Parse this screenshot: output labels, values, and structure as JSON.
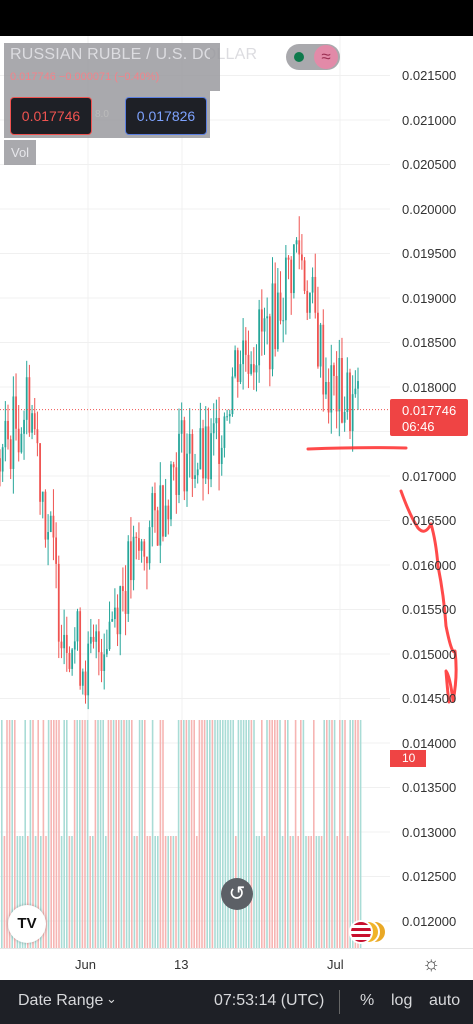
{
  "instrument": {
    "title": "RUSSIAN RUBLE / U.S. DOLLAR",
    "ohlc_line": "0.017746 −0.000071 (−0.40%)",
    "bid": "0.017746",
    "ask": "0.017826",
    "spread_hint": "8.0",
    "volume_label": "Vol"
  },
  "toggle": {
    "wave_glyph": "≈"
  },
  "price_axis": {
    "labels": [
      "0.021500",
      "0.021000",
      "0.020500",
      "0.020000",
      "0.019500",
      "0.019000",
      "0.018500",
      "0.018000",
      "0.017000",
      "0.016500",
      "0.016000",
      "0.015500",
      "0.015000",
      "0.014500",
      "0.014000",
      "0.013500",
      "0.013000",
      "0.012500",
      "0.012000"
    ]
  },
  "last_price": {
    "price": "0.017746",
    "countdown": "06:46"
  },
  "volume_value": "10",
  "time_axis": {
    "labels": [
      "Jun",
      "13",
      "Jul"
    ]
  },
  "colors": {
    "up": "#26a69a",
    "down": "#ef5350",
    "annotation": "#ff2a2a",
    "bar_bg": "#1e2026"
  },
  "icons": {
    "reset": "reset-chart-icon",
    "settings": "gear-icon",
    "logo": "tradingview-logo-icon"
  },
  "bottom_bar": {
    "date_range": "Date Range",
    "chevron": "⌄",
    "clock": "07:53:14 (UTC)",
    "percent": "%",
    "log": "log",
    "auto": "auto"
  },
  "chart_data": {
    "type": "candlestick",
    "title": "",
    "x_ticks": [
      "Jun",
      "13",
      "Jul"
    ],
    "y_range": [
      0.0118,
      0.0218
    ],
    "last": 0.017746,
    "path_approx": [
      {
        "x_label": "late May",
        "y": 0.0172
      },
      {
        "x_label": "late May",
        "y": 0.0179
      },
      {
        "x_label": "early Jun",
        "y": 0.0155
      },
      {
        "x_label": "early Jun",
        "y": 0.0148
      },
      {
        "x_label": "Jun",
        "y": 0.0157
      },
      {
        "x_label": "13",
        "y": 0.0163
      },
      {
        "x_label": "mid Jun",
        "y": 0.0173
      },
      {
        "x_label": "mid Jun",
        "y": 0.0171
      },
      {
        "x_label": "late Jun",
        "y": 0.0184
      },
      {
        "x_label": "late Jun",
        "y": 0.0186
      },
      {
        "x_label": "late Jun",
        "y": 0.0196
      },
      {
        "x_label": "Jul",
        "y": 0.018
      },
      {
        "x_label": "Jul",
        "y": 0.017746
      }
    ]
  }
}
